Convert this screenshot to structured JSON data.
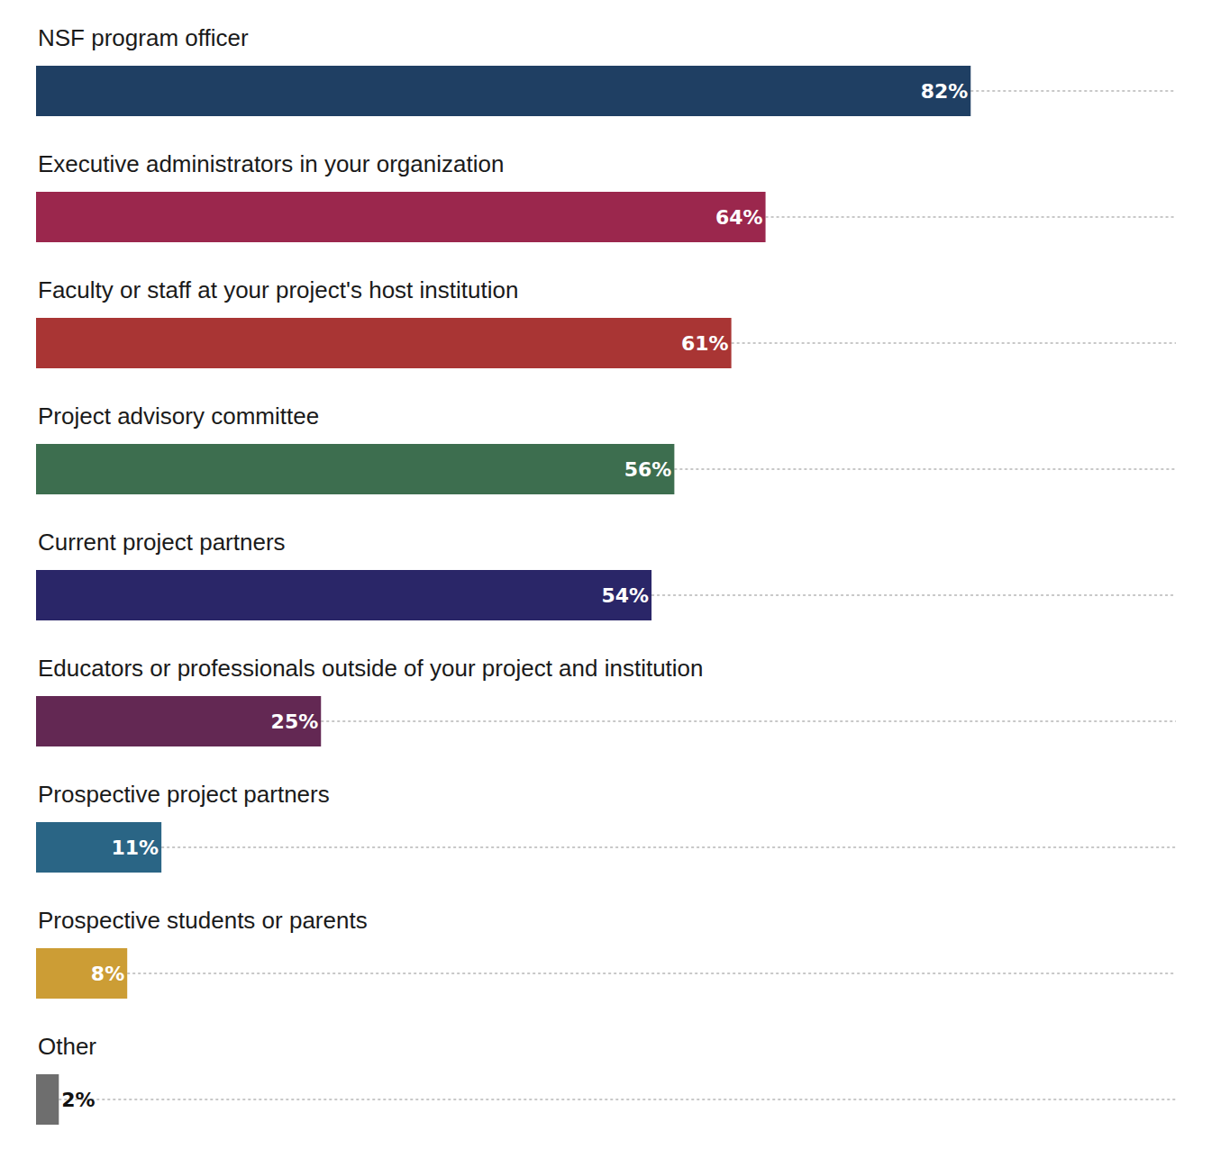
{
  "chart_data": {
    "type": "bar",
    "orientation": "horizontal",
    "categories": [
      "NSF program officer",
      "Executive administrators in your organization",
      "Faculty or staff at your project's host institution",
      "Project advisory committee",
      "Current project partners",
      "Educators or professionals outside of your project and institution",
      "Prospective project partners",
      "Prospective students or parents",
      "Other"
    ],
    "values": [
      82,
      64,
      61,
      56,
      54,
      25,
      11,
      8,
      2
    ],
    "value_labels": [
      "82%",
      "64%",
      "61%",
      "56%",
      "54%",
      "25%",
      "11%",
      "8%",
      "2%"
    ],
    "colors": [
      "#1f3f63",
      "#9b274d",
      "#a93534",
      "#3d6e4f",
      "#2a2668",
      "#632853",
      "#2a6585",
      "#cc9d35",
      "#6e6e6e"
    ],
    "xlim": [
      0,
      100
    ],
    "data_labels": true,
    "tick_labels": false,
    "grid": false
  }
}
